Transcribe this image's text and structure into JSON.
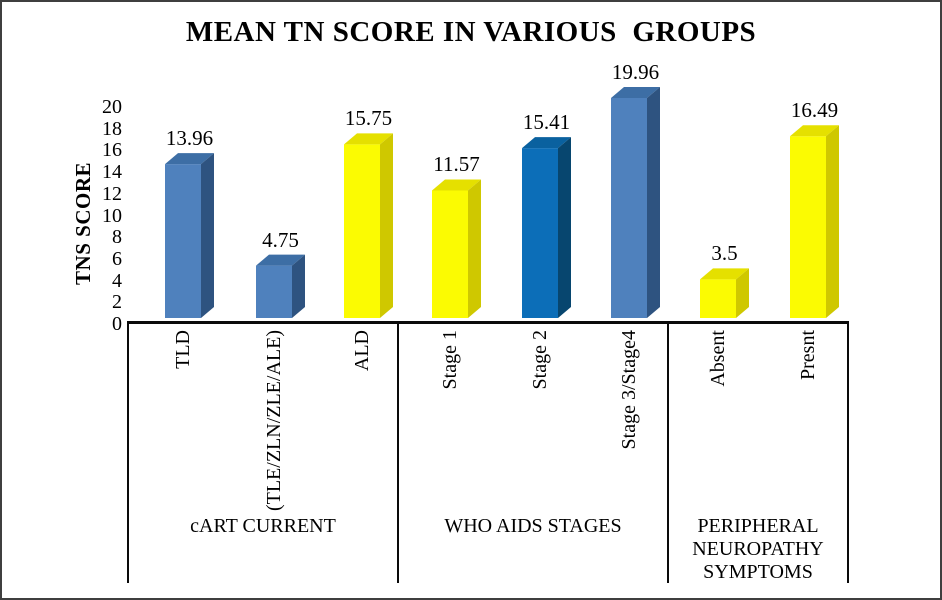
{
  "title": "MEAN TN SCORE IN VARIOUS  GROUPS",
  "chart_data": {
    "type": "bar",
    "style": "3d-column",
    "title": "MEAN TN SCORE IN VARIOUS  GROUPS",
    "xlabel": "",
    "ylabel": "TNS SCORE",
    "ylim": [
      0,
      20
    ],
    "ytick_step": 2,
    "yticks": [
      0,
      2,
      4,
      6,
      8,
      10,
      12,
      14,
      16,
      18,
      20
    ],
    "grid": false,
    "legend": false,
    "colors": {
      "steel_blue": {
        "front": "#4F81BD",
        "top": "#3D6EA5",
        "side": "#2E5380"
      },
      "vivid_blue": {
        "front": "#0C6EB8",
        "top": "#0A619F",
        "side": "#07466F"
      },
      "yellow": {
        "front": "#FBFB02",
        "top": "#E5E000",
        "side": "#CFC800"
      }
    },
    "groups": [
      {
        "label": "cART CURRENT",
        "bars": [
          {
            "category": "TLD",
            "value": 13.96,
            "value_label": "13.96",
            "color": "steel_blue"
          },
          {
            "category": "(TLE/ZLN/ZLE/ALE)",
            "value": 4.75,
            "value_label": "4.75",
            "color": "steel_blue"
          },
          {
            "category": "ALD",
            "value": 15.75,
            "value_label": "15.75",
            "color": "yellow"
          }
        ]
      },
      {
        "label": "WHO AIDS STAGES",
        "bars": [
          {
            "category": "Stage 1",
            "value": 11.57,
            "value_label": "11.57",
            "color": "yellow"
          },
          {
            "category": "Stage 2",
            "value": 15.41,
            "value_label": "15.41",
            "color": "vivid_blue"
          },
          {
            "category": "Stage 3/Stage4",
            "value": 19.96,
            "value_label": "19.96",
            "color": "steel_blue"
          }
        ]
      },
      {
        "label": "PERIPHERAL NEUROPATHY SYMPTOMS",
        "bars": [
          {
            "category": "Absent",
            "value": 3.5,
            "value_label": "3.5",
            "color": "yellow"
          },
          {
            "category": "Presnt",
            "value": 16.49,
            "value_label": "16.49",
            "color": "yellow"
          }
        ]
      }
    ]
  }
}
